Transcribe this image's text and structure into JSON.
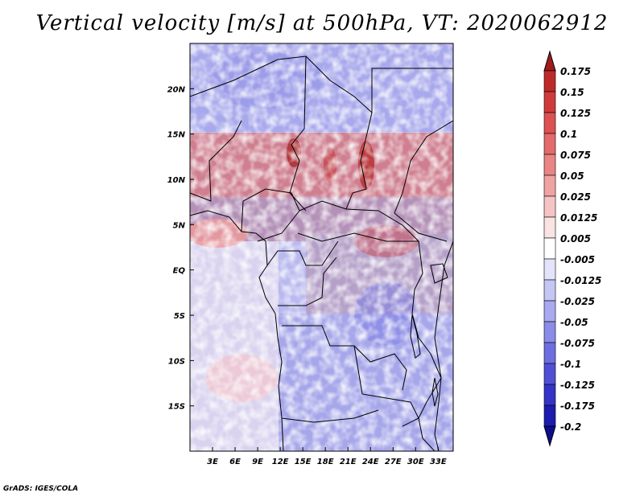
{
  "title": "Vertical velocity [m/s] at 500hPa, VT: 2020062912",
  "credit": "GrADS: IGES/COLA",
  "map": {
    "lon_range": [
      0,
      35
    ],
    "lat_range": [
      -20,
      25
    ],
    "lon_ticks": [
      "3E",
      "6E",
      "9E",
      "12E",
      "15E",
      "18E",
      "21E",
      "24E",
      "27E",
      "30E",
      "33E"
    ],
    "lat_ticks": [
      "20N",
      "15N",
      "10N",
      "5N",
      "EQ",
      "5S",
      "10S",
      "15S"
    ]
  },
  "colorbar": {
    "labels": [
      "0.175",
      "0.15",
      "0.125",
      "0.1",
      "0.075",
      "0.05",
      "0.025",
      "0.0125",
      "0.005",
      "-0.005",
      "-0.0125",
      "-0.025",
      "-0.05",
      "-0.075",
      "-0.1",
      "-0.125",
      "-0.175",
      "-0.2"
    ],
    "colors": [
      "#a01b1b",
      "#bd2a2a",
      "#cf3b3b",
      "#dc5252",
      "#e36b6b",
      "#ea8585",
      "#f0a3a3",
      "#f5c4c4",
      "#fae3e3",
      "#ffffff",
      "#e3e3fb",
      "#c6c6f5",
      "#a9a9ef",
      "#8b8be8",
      "#6e6ee0",
      "#5050d6",
      "#3434c6",
      "#1c1cae",
      "#0d0d8e"
    ],
    "top_color": "#a01b1b",
    "bottom_color": "#0d0d8e"
  }
}
